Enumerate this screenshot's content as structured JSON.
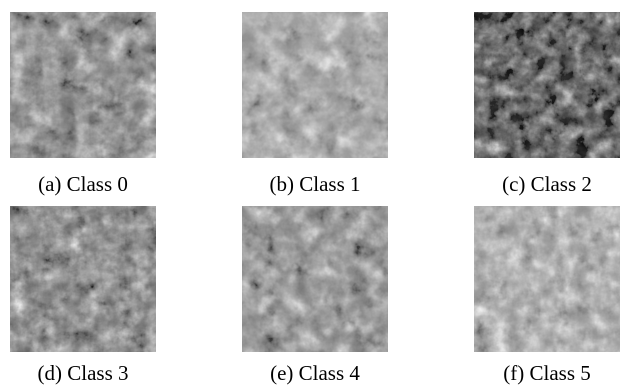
{
  "panels": [
    {
      "caption": "(a) Class 0",
      "description": "grayscale texture of rolled tea leaves, medium gray with light gaps",
      "tone": "#6f6f6f"
    },
    {
      "caption": "(b) Class 1",
      "description": "grayscale texture of loosely rolled tea leaves, lighter gray",
      "tone": "#8a8a8a"
    },
    {
      "caption": "(c) Class 2",
      "description": "grayscale texture of tightly rolled tea leaves, dark",
      "tone": "#3f3f3f"
    },
    {
      "caption": "(d) Class 3",
      "description": "grayscale texture of rolled tea leaves, medium gray",
      "tone": "#6a6a6a"
    },
    {
      "caption": "(e) Class 4",
      "description": "grayscale texture of rolled tea leaves, medium-light gray",
      "tone": "#7b7b7b"
    },
    {
      "caption": "(f) Class 5",
      "description": "grayscale texture of rolled tea leaves, light gray",
      "tone": "#8f8f8f"
    }
  ]
}
